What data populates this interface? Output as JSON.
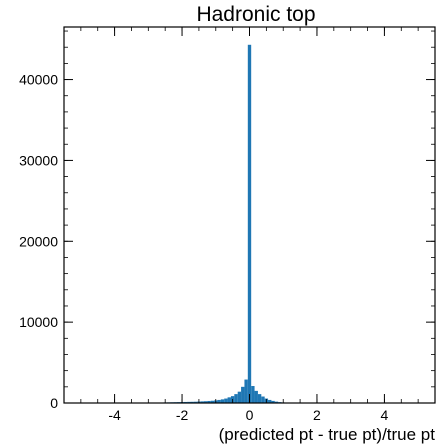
{
  "chart_data": {
    "type": "bar",
    "title": "Hadronic top",
    "xlabel": "(predicted pt - true pt)/true pt",
    "ylabel": "",
    "xlim": [
      -5.5,
      5.5
    ],
    "ylim": [
      0,
      46500
    ],
    "xticks": [
      -4,
      -2,
      0,
      2,
      4
    ],
    "xtick_labels": [
      "-4",
      "-2",
      "0",
      "2",
      "4"
    ],
    "yticks": [
      0,
      10000,
      20000,
      30000,
      40000
    ],
    "ytick_labels": [
      "0",
      "10000",
      "20000",
      "30000",
      "40000"
    ],
    "grid": false,
    "bar_color": "#1f77b4",
    "bin_width": 0.1,
    "bins": [
      {
        "x": -3.0,
        "value": 30
      },
      {
        "x": -2.9,
        "value": 40
      },
      {
        "x": -2.8,
        "value": 45
      },
      {
        "x": -2.7,
        "value": 50
      },
      {
        "x": -2.6,
        "value": 60
      },
      {
        "x": -2.5,
        "value": 70
      },
      {
        "x": -2.4,
        "value": 80
      },
      {
        "x": -2.3,
        "value": 90
      },
      {
        "x": -2.2,
        "value": 100
      },
      {
        "x": -2.1,
        "value": 110
      },
      {
        "x": -2.0,
        "value": 120
      },
      {
        "x": -1.9,
        "value": 130
      },
      {
        "x": -1.8,
        "value": 140
      },
      {
        "x": -1.7,
        "value": 150
      },
      {
        "x": -1.6,
        "value": 160
      },
      {
        "x": -1.5,
        "value": 180
      },
      {
        "x": -1.4,
        "value": 200
      },
      {
        "x": -1.3,
        "value": 220
      },
      {
        "x": -1.2,
        "value": 250
      },
      {
        "x": -1.1,
        "value": 280
      },
      {
        "x": -1.0,
        "value": 320
      },
      {
        "x": -0.9,
        "value": 380
      },
      {
        "x": -0.8,
        "value": 450
      },
      {
        "x": -0.7,
        "value": 550
      },
      {
        "x": -0.6,
        "value": 700
      },
      {
        "x": -0.5,
        "value": 850
      },
      {
        "x": -0.4,
        "value": 1100
      },
      {
        "x": -0.3,
        "value": 1400
      },
      {
        "x": -0.2,
        "value": 2000
      },
      {
        "x": -0.1,
        "value": 2900
      },
      {
        "x": 0.0,
        "value": 44300
      },
      {
        "x": 0.1,
        "value": 2100
      },
      {
        "x": 0.2,
        "value": 1500
      },
      {
        "x": 0.3,
        "value": 1100
      },
      {
        "x": 0.4,
        "value": 800
      },
      {
        "x": 0.5,
        "value": 550
      },
      {
        "x": 0.6,
        "value": 380
      },
      {
        "x": 0.7,
        "value": 260
      },
      {
        "x": 0.8,
        "value": 170
      },
      {
        "x": 0.9,
        "value": 110
      },
      {
        "x": 1.0,
        "value": 70
      },
      {
        "x": 1.1,
        "value": 45
      },
      {
        "x": 1.2,
        "value": 30
      },
      {
        "x": 1.3,
        "value": 20
      }
    ]
  }
}
